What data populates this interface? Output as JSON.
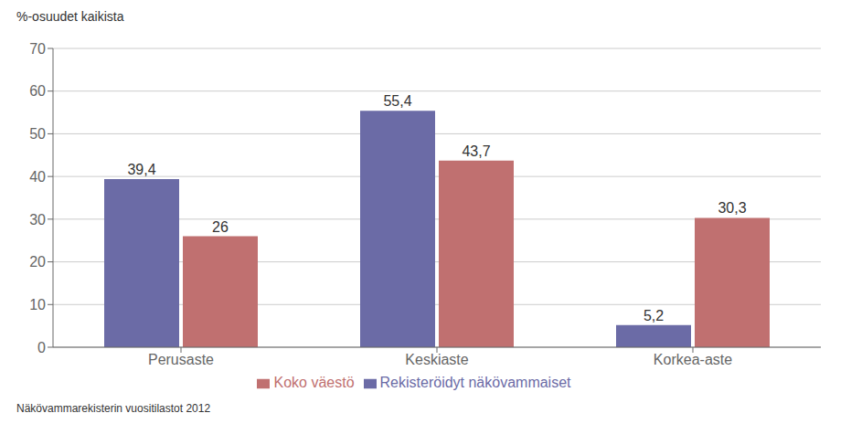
{
  "chart_data": {
    "type": "bar",
    "ylabel": "%-osuudet kaikista",
    "categories": [
      "Perusaste",
      "Keskiaste",
      "Korkea-aste"
    ],
    "series": [
      {
        "name": "Rekisteröidyt näkövammaiset",
        "color": "#6B6BA6",
        "values": [
          39.4,
          55.4,
          5.2
        ],
        "value_labels": [
          "39,4",
          "55,4",
          "5,2"
        ]
      },
      {
        "name": "Koko väestö",
        "color": "#C07070",
        "values": [
          26.0,
          43.7,
          30.3
        ],
        "value_labels": [
          "26",
          "43,7",
          "30,3"
        ]
      }
    ],
    "ylim": [
      0,
      70
    ],
    "yticks": [
      0,
      10,
      20,
      30,
      40,
      50,
      60,
      70
    ],
    "grid": true,
    "legend": "bottom",
    "data_labels": true,
    "annotations": [
      "Näkövammarekisterin vuositilastot 2012"
    ]
  }
}
